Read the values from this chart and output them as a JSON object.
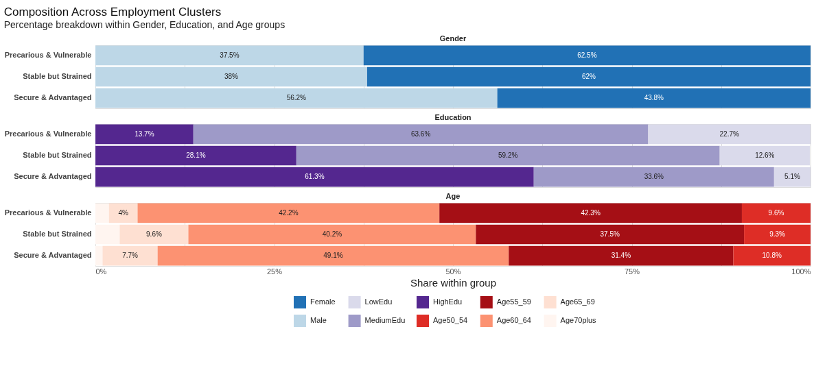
{
  "chart_data": [
    {
      "type": "bar",
      "orientation": "horizontal",
      "stacked": true,
      "title": "Composition Across Employment Clusters",
      "subtitle": "Percentage breakdown within Gender, Education, and Age groups",
      "annotations": [
        "Gender"
      ],
      "categories": [
        "Precarious & Vulnerable",
        "Stable but Strained",
        "Secure & Advantaged"
      ],
      "xlim": [
        0,
        100
      ],
      "xticks": [
        {
          "value": 0,
          "label": null
        },
        {
          "value": 12.5,
          "label": null
        },
        {
          "value": 25,
          "label": null
        },
        {
          "value": 37.5,
          "label": null
        },
        {
          "value": 50,
          "label": null
        },
        {
          "value": 62.5,
          "label": null
        },
        {
          "value": 75,
          "label": null
        },
        {
          "value": 87.5,
          "label": null
        },
        {
          "value": 100,
          "label": null
        }
      ],
      "tick_labels": "y",
      "grid": "x",
      "legend": "bottom",
      "series": [
        {
          "name": "Male",
          "color": "#bdd7e7",
          "values": [
            37.5,
            38,
            56.2
          ],
          "value_labels": [
            "37.5%",
            "38%",
            "56.2%"
          ]
        },
        {
          "name": "Female",
          "color": "#2171b5",
          "values": [
            62.5,
            62,
            43.8
          ],
          "value_labels": [
            "62.5%",
            "62%",
            "43.8%"
          ]
        }
      ]
    },
    {
      "type": "bar",
      "orientation": "horizontal",
      "stacked": true,
      "annotations": [
        "Education"
      ],
      "categories": [
        "Precarious & Vulnerable",
        "Stable but Strained",
        "Secure & Advantaged"
      ],
      "xlim": [
        0,
        100
      ],
      "xticks": [
        {
          "value": 0,
          "label": null
        },
        {
          "value": 12.5,
          "label": null
        },
        {
          "value": 25,
          "label": null
        },
        {
          "value": 37.5,
          "label": null
        },
        {
          "value": 50,
          "label": null
        },
        {
          "value": 62.5,
          "label": null
        },
        {
          "value": 75,
          "label": null
        },
        {
          "value": 87.5,
          "label": null
        },
        {
          "value": 100,
          "label": null
        }
      ],
      "tick_labels": "y",
      "grid": "x",
      "legend": "bottom",
      "series": [
        {
          "name": "HighEdu",
          "color": "#54278f",
          "values": [
            13.7,
            28.1,
            61.3
          ],
          "value_labels": [
            "13.7%",
            "28.1%",
            "61.3%"
          ]
        },
        {
          "name": "MediumEdu",
          "color": "#9e9ac8",
          "values": [
            63.6,
            59.2,
            33.6
          ],
          "value_labels": [
            "63.6%",
            "59.2%",
            "33.6%"
          ]
        },
        {
          "name": "LowEdu",
          "color": "#dadaeb",
          "values": [
            22.7,
            12.6,
            5.1
          ],
          "value_labels": [
            "22.7%",
            "12.6%",
            "5.1%"
          ]
        }
      ]
    },
    {
      "type": "bar",
      "orientation": "horizontal",
      "stacked": true,
      "annotations": [
        "Age"
      ],
      "xlabel": "Share within group",
      "legend": "bottom",
      "categories": [
        "Precarious & Vulnerable",
        "Stable but Strained",
        "Secure & Advantaged"
      ],
      "xlim": [
        0,
        100
      ],
      "xticks": [
        {
          "value": 0,
          "label": "0%"
        },
        {
          "value": 12.5,
          "label": null
        },
        {
          "value": 25,
          "label": "25%"
        },
        {
          "value": 37.5,
          "label": null
        },
        {
          "value": 50,
          "label": "50%"
        },
        {
          "value": 62.5,
          "label": null
        },
        {
          "value": 75,
          "label": "75%"
        },
        {
          "value": 87.5,
          "label": null
        },
        {
          "value": 100,
          "label": "100%"
        }
      ],
      "grid": "x",
      "series": [
        {
          "name": "Age70plus",
          "color": "#fff5f0",
          "values": [
            1.9,
            3.4,
            1.0
          ],
          "value_labels": [
            null,
            null,
            null
          ]
        },
        {
          "name": "Age65_69",
          "color": "#fee0d2",
          "values": [
            4,
            9.6,
            7.7
          ],
          "value_labels": [
            "4%",
            "9.6%",
            "7.7%"
          ]
        },
        {
          "name": "Age60_64",
          "color": "#fc9272",
          "values": [
            42.2,
            40.2,
            49.1
          ],
          "value_labels": [
            "42.2%",
            "40.2%",
            "49.1%"
          ]
        },
        {
          "name": "Age55_59",
          "color": "#a50f15",
          "values": [
            42.3,
            37.5,
            31.4
          ],
          "value_labels": [
            "42.3%",
            "37.5%",
            "31.4%"
          ]
        },
        {
          "name": "Age50_54",
          "color": "#de2d26",
          "values": [
            9.6,
            9.3,
            10.8
          ],
          "value_labels": [
            "9.6%",
            "9.3%",
            "10.8%"
          ]
        }
      ]
    }
  ]
}
